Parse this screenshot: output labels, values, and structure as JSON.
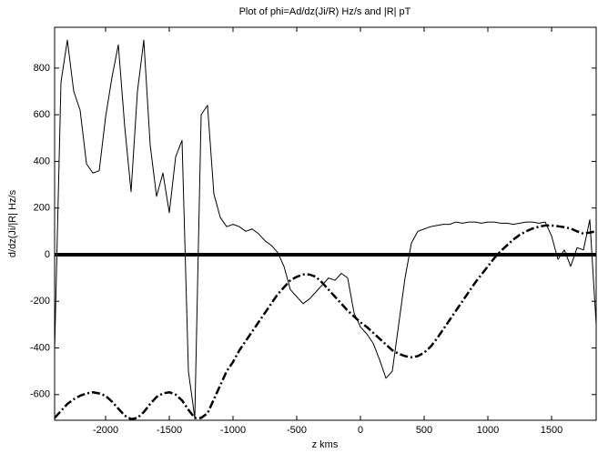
{
  "chart_data": {
    "type": "line",
    "title": "Plot of phi=Ad/dz(Ji/R) Hz/s and |R| pT",
    "x_label": "z kms",
    "y_label": "d/dz(Ji/|R| Hz/s",
    "x": [
      -2400,
      -2350,
      -2300,
      -2250,
      -2200,
      -2150,
      -2100,
      -2050,
      -2000,
      -1950,
      -1900,
      -1850,
      -1800,
      -1750,
      -1700,
      -1650,
      -1600,
      -1550,
      -1500,
      -1450,
      -1400,
      -1350,
      -1300,
      -1250,
      -1200,
      -1150,
      -1100,
      -1050,
      -1000,
      -950,
      -900,
      -850,
      -800,
      -750,
      -700,
      -650,
      -600,
      -550,
      -500,
      -450,
      -400,
      -350,
      -300,
      -250,
      -200,
      -150,
      -100,
      -50,
      0,
      50,
      100,
      150,
      200,
      250,
      300,
      350,
      400,
      450,
      500,
      550,
      600,
      650,
      700,
      750,
      800,
      850,
      900,
      950,
      1000,
      1050,
      1100,
      1150,
      1200,
      1250,
      1300,
      1350,
      1400,
      1450,
      1500,
      1550,
      1600,
      1650,
      1700,
      1750,
      1800,
      1850
    ],
    "series": [
      {
        "color": "#000000",
        "line_style": "solid",
        "line_width": 1,
        "values": [
          -410,
          740,
          920,
          700,
          620,
          390,
          350,
          360,
          590,
          760,
          900,
          550,
          270,
          700,
          920,
          470,
          250,
          350,
          180,
          420,
          490,
          -500,
          -700,
          600,
          640,
          260,
          160,
          120,
          130,
          120,
          100,
          110,
          90,
          60,
          40,
          10,
          -50,
          -150,
          -180,
          -210,
          -190,
          -160,
          -130,
          -100,
          -110,
          -80,
          -100,
          -250,
          -310,
          -340,
          -380,
          -450,
          -530,
          -500,
          -300,
          -100,
          50,
          100,
          110,
          120,
          125,
          130,
          130,
          140,
          135,
          140,
          140,
          135,
          140,
          140,
          135,
          135,
          130,
          135,
          140,
          140,
          135,
          140,
          80,
          -20,
          20,
          -50,
          30,
          20,
          150,
          -300
        ]
      },
      {
        "color": "#000000",
        "line_style": "dashdot",
        "line_width": 2.5,
        "values": [
          -700,
          -670,
          -640,
          -620,
          -605,
          -595,
          -590,
          -595,
          -605,
          -630,
          -660,
          -690,
          -705,
          -700,
          -675,
          -640,
          -610,
          -595,
          -590,
          -600,
          -625,
          -665,
          -700,
          -700,
          -680,
          -620,
          -560,
          -500,
          -460,
          -410,
          -370,
          -330,
          -290,
          -250,
          -210,
          -170,
          -140,
          -110,
          -95,
          -85,
          -85,
          -95,
          -120,
          -150,
          -180,
          -210,
          -240,
          -265,
          -290,
          -310,
          -335,
          -360,
          -385,
          -410,
          -425,
          -435,
          -440,
          -435,
          -420,
          -395,
          -360,
          -320,
          -280,
          -240,
          -200,
          -160,
          -120,
          -85,
          -50,
          -15,
          15,
          40,
          65,
          85,
          100,
          112,
          120,
          125,
          125,
          122,
          118,
          112,
          100,
          90,
          95,
          100
        ]
      }
    ],
    "reference_line": 0,
    "xlim": [
      -2400,
      1850
    ],
    "ylim": [
      -710,
      975
    ],
    "xticks": [
      -2000,
      -1500,
      -1000,
      -500,
      0,
      500,
      1000,
      1500
    ],
    "yticks": [
      -600,
      -400,
      -200,
      0,
      200,
      400,
      600,
      800
    ],
    "grid": false
  }
}
